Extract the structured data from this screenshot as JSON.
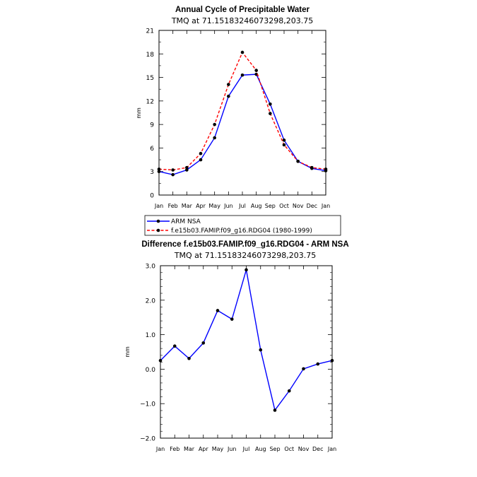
{
  "chart_data": [
    {
      "type": "line",
      "title": "Annual Cycle of Precipitable Water",
      "subtitle": "TMQ at 71.15183246073298,203.75",
      "ylabel": "mm",
      "xlabel": "",
      "categories": [
        "Jan",
        "Feb",
        "Mar",
        "Apr",
        "May",
        "Jun",
        "Jul",
        "Aug",
        "Sep",
        "Oct",
        "Nov",
        "Dec",
        "Jan"
      ],
      "ylim": [
        0,
        21
      ],
      "yticks": [
        "0",
        "3",
        "6",
        "9",
        "12",
        "15",
        "18",
        "21"
      ],
      "ytick_values": [
        0,
        3,
        6,
        9,
        12,
        15,
        18,
        21
      ],
      "series": [
        {
          "name": "ARM NSA",
          "color": "#0000ff",
          "dash": "solid",
          "values": [
            3.0,
            2.6,
            3.2,
            4.5,
            7.3,
            12.6,
            15.3,
            15.4,
            11.6,
            7.0,
            4.3,
            3.4,
            3.1
          ]
        },
        {
          "name": "f.e15b03.FAMIP.f09_g16.RDG04 (1980-1999)",
          "color": "#ff0000",
          "dash": "dashed",
          "values": [
            3.3,
            3.2,
            3.5,
            5.3,
            9.0,
            14.1,
            18.2,
            15.9,
            10.4,
            6.4,
            4.3,
            3.5,
            3.3
          ]
        }
      ],
      "legend_position": "bottom"
    },
    {
      "type": "line",
      "title": "Difference f.e15b03.FAMIP.f09_g16.RDG04 - ARM NSA",
      "subtitle": "TMQ at 71.15183246073298,203.75",
      "ylabel": "mm",
      "xlabel": "",
      "categories": [
        "Jan",
        "Feb",
        "Mar",
        "Apr",
        "May",
        "Jun",
        "Jul",
        "Aug",
        "Sep",
        "Oct",
        "Nov",
        "Dec",
        "Jan"
      ],
      "ylim": [
        -2.0,
        3.0
      ],
      "yticks": [
        "−2.0",
        "−1.0",
        "0.0",
        "1.0",
        "2.0",
        "3.0"
      ],
      "ytick_values": [
        -2,
        -1,
        0,
        1,
        2,
        3
      ],
      "series": [
        {
          "name": "Difference",
          "color": "#0000ff",
          "dash": "solid",
          "values": [
            0.25,
            0.67,
            0.31,
            0.76,
            1.7,
            1.45,
            2.88,
            0.56,
            -1.19,
            -0.63,
            0.01,
            0.15,
            0.25
          ]
        }
      ]
    }
  ]
}
